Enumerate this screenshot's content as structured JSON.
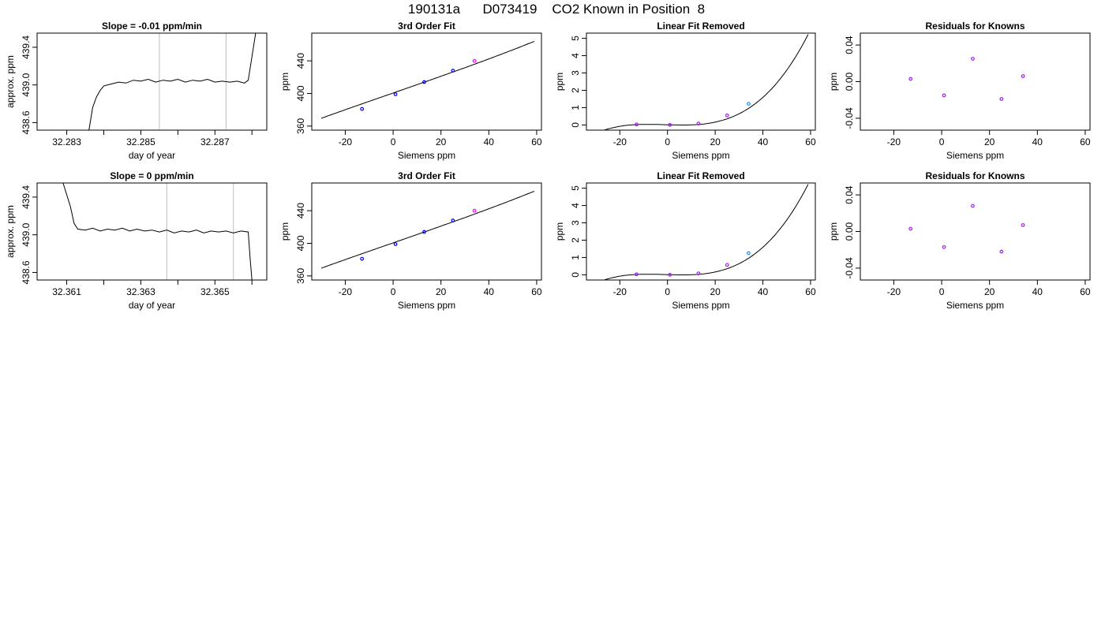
{
  "figure": {
    "title": "190131a      D073419    CO2 Known in Position  8"
  },
  "chart_data": [
    {
      "type": "line",
      "title": "Slope =  -0.01  ppm/min",
      "xlabel": "day of year",
      "ylabel": "approx. ppm",
      "xlim": [
        32.2822,
        32.2884
      ],
      "ylim": [
        438.52,
        439.55
      ],
      "xticks": [
        32.283,
        32.284,
        32.285,
        32.286,
        32.287,
        32.288
      ],
      "xtick_labels": [
        "32.283",
        "",
        "32.285",
        "",
        "32.287",
        ""
      ],
      "yticks": [
        438.6,
        439.0,
        439.4
      ],
      "ytick_labels": [
        "438.6",
        "439.0",
        "439.4"
      ],
      "vlines": [
        32.2855,
        32.2873
      ],
      "vline_color": "#bebebe",
      "series": [
        {
          "color": "#000000",
          "x": [
            32.2836,
            32.2837,
            32.2838,
            32.2839,
            32.284,
            32.2842,
            32.2844,
            32.2846,
            32.2848,
            32.285,
            32.2852,
            32.2854,
            32.2856,
            32.2858,
            32.286,
            32.2862,
            32.2864,
            32.2866,
            32.2868,
            32.287,
            32.2872,
            32.2874,
            32.2876,
            32.2878,
            32.2879,
            32.288,
            32.2881
          ],
          "y": [
            438.52,
            438.76,
            438.87,
            438.94,
            438.99,
            439.01,
            439.03,
            439.02,
            439.05,
            439.04,
            439.06,
            439.03,
            439.05,
            439.04,
            439.06,
            439.03,
            439.05,
            439.04,
            439.06,
            439.03,
            439.04,
            439.03,
            439.04,
            439.02,
            439.05,
            439.3,
            439.55
          ]
        }
      ],
      "grid": false
    },
    {
      "type": "scatter",
      "title": "3rd Order Fit",
      "xlabel": "Siemens ppm",
      "ylabel": "ppm",
      "xlim": [
        -34,
        62
      ],
      "ylim": [
        355,
        474
      ],
      "xticks": [
        -20,
        0,
        20,
        40,
        60
      ],
      "yticks": [
        360,
        400,
        440
      ],
      "curve": {
        "kind": "cubic",
        "a": 400.55,
        "b": 1.02,
        "c": 0,
        "d": 1.54e-05,
        "x0": -30,
        "x1": 59,
        "color": "#000000"
      },
      "points": [
        {
          "x": -13,
          "y": 381,
          "color": "#0000ff"
        },
        {
          "x": 1,
          "y": 399,
          "color": "#0000ff"
        },
        {
          "x": 13,
          "y": 414,
          "color": "#0000ff"
        },
        {
          "x": 25,
          "y": 428,
          "color": "#0000ff"
        },
        {
          "x": 34,
          "y": 440,
          "color": "#ff00ff"
        }
      ],
      "grid": false
    },
    {
      "type": "scatter",
      "title": "Linear Fit Removed",
      "xlabel": "Siemens ppm",
      "ylabel": "ppm",
      "xlim": [
        -34,
        62
      ],
      "ylim": [
        -0.3,
        5.3
      ],
      "xticks": [
        -20,
        0,
        20,
        40,
        60
      ],
      "yticks": [
        0,
        1,
        2,
        3,
        4,
        5
      ],
      "curve": {
        "kind": "cubic",
        "a": 0.01,
        "b": -0.004,
        "c": 8e-05,
        "d": 2.52e-05,
        "x0": -30,
        "x1": 59,
        "color": "#000000"
      },
      "points": [
        {
          "x": -13,
          "y": 0.03,
          "color": "#a020f0"
        },
        {
          "x": 1,
          "y": 0.0,
          "color": "#a020f0"
        },
        {
          "x": 13,
          "y": 0.08,
          "color": "#a020f0"
        },
        {
          "x": 25,
          "y": 0.55,
          "color": "#a020f0"
        },
        {
          "x": 34,
          "y": 1.22,
          "color": "#1e90ff"
        }
      ],
      "grid": false
    },
    {
      "type": "scatter",
      "title": "Residuals for Knowns",
      "xlabel": "Siemens ppm",
      "ylabel": "ppm",
      "xlim": [
        -34,
        62
      ],
      "ylim": [
        -0.053,
        0.053
      ],
      "xticks": [
        -20,
        0,
        20,
        40,
        60
      ],
      "yticks": [
        -0.04,
        0.0,
        0.04
      ],
      "ytick_labels": [
        "-0.04",
        "0.00",
        "0.04"
      ],
      "points": [
        {
          "x": -13,
          "y": 0.003,
          "color": "#a020f0"
        },
        {
          "x": 1,
          "y": -0.015,
          "color": "#a020f0"
        },
        {
          "x": 13,
          "y": 0.025,
          "color": "#a020f0"
        },
        {
          "x": 25,
          "y": -0.019,
          "color": "#a020f0"
        },
        {
          "x": 34,
          "y": 0.006,
          "color": "#a020f0"
        }
      ],
      "grid": false
    },
    {
      "type": "line",
      "title": "Slope =  0  ppm/min",
      "xlabel": "day of year",
      "ylabel": "approx. ppm",
      "xlim": [
        32.3602,
        32.3664
      ],
      "ylim": [
        438.52,
        439.55
      ],
      "xticks": [
        32.361,
        32.362,
        32.363,
        32.364,
        32.365,
        32.366
      ],
      "xtick_labels": [
        "32.361",
        "",
        "32.363",
        "",
        "32.365",
        ""
      ],
      "yticks": [
        438.6,
        439.0,
        439.4
      ],
      "ytick_labels": [
        "438.6",
        "439.0",
        "439.4"
      ],
      "vlines": [
        32.3637,
        32.3655
      ],
      "vline_color": "#bebebe",
      "series": [
        {
          "color": "#000000",
          "x": [
            32.3609,
            32.3611,
            32.3612,
            32.3613,
            32.3615,
            32.3617,
            32.3619,
            32.3621,
            32.3623,
            32.3625,
            32.3627,
            32.3629,
            32.3631,
            32.3633,
            32.3635,
            32.3637,
            32.3639,
            32.3641,
            32.3643,
            32.3645,
            32.3647,
            32.3649,
            32.3651,
            32.3653,
            32.3655,
            32.3657,
            32.3659,
            32.36595,
            32.366
          ],
          "y": [
            439.55,
            439.3,
            439.12,
            439.06,
            439.05,
            439.07,
            439.04,
            439.06,
            439.05,
            439.07,
            439.04,
            439.06,
            439.04,
            439.05,
            439.03,
            439.05,
            439.02,
            439.04,
            439.03,
            439.05,
            439.02,
            439.04,
            439.03,
            439.04,
            439.02,
            439.04,
            439.03,
            438.75,
            438.52
          ]
        }
      ],
      "grid": false
    },
    {
      "type": "scatter",
      "title": "3rd Order Fit",
      "xlabel": "Siemens ppm",
      "ylabel": "ppm",
      "xlim": [
        -34,
        62
      ],
      "ylim": [
        355,
        474
      ],
      "xticks": [
        -20,
        0,
        20,
        40,
        60
      ],
      "yticks": [
        360,
        400,
        440
      ],
      "curve": {
        "kind": "cubic",
        "a": 400.55,
        "b": 1.02,
        "c": 0,
        "d": 1.54e-05,
        "x0": -30,
        "x1": 59,
        "color": "#000000"
      },
      "points": [
        {
          "x": -13,
          "y": 381,
          "color": "#0000ff"
        },
        {
          "x": 1,
          "y": 399,
          "color": "#0000ff"
        },
        {
          "x": 13,
          "y": 414,
          "color": "#0000ff"
        },
        {
          "x": 25,
          "y": 428,
          "color": "#0000ff"
        },
        {
          "x": 34,
          "y": 440,
          "color": "#ff00ff"
        }
      ],
      "grid": false
    },
    {
      "type": "scatter",
      "title": "Linear Fit Removed",
      "xlabel": "Siemens ppm",
      "ylabel": "ppm",
      "xlim": [
        -34,
        62
      ],
      "ylim": [
        -0.3,
        5.3
      ],
      "xticks": [
        -20,
        0,
        20,
        40,
        60
      ],
      "yticks": [
        0,
        1,
        2,
        3,
        4,
        5
      ],
      "curve": {
        "kind": "cubic",
        "a": 0.01,
        "b": -0.004,
        "c": 8e-05,
        "d": 2.52e-05,
        "x0": -30,
        "x1": 59,
        "color": "#000000"
      },
      "points": [
        {
          "x": -13,
          "y": 0.03,
          "color": "#a020f0"
        },
        {
          "x": 1,
          "y": 0.0,
          "color": "#a020f0"
        },
        {
          "x": 13,
          "y": 0.08,
          "color": "#a020f0"
        },
        {
          "x": 25,
          "y": 0.57,
          "color": "#a020f0"
        },
        {
          "x": 34,
          "y": 1.25,
          "color": "#1e90ff"
        }
      ],
      "grid": false
    },
    {
      "type": "scatter",
      "title": "Residuals for Knowns",
      "xlabel": "Siemens ppm",
      "ylabel": "ppm",
      "xlim": [
        -34,
        62
      ],
      "ylim": [
        -0.053,
        0.053
      ],
      "xticks": [
        -20,
        0,
        20,
        40,
        60
      ],
      "yticks": [
        -0.04,
        0.0,
        0.04
      ],
      "ytick_labels": [
        "-0.04",
        "0.00",
        "0.04"
      ],
      "points": [
        {
          "x": -13,
          "y": 0.003,
          "color": "#a020f0"
        },
        {
          "x": 1,
          "y": -0.017,
          "color": "#a020f0"
        },
        {
          "x": 13,
          "y": 0.028,
          "color": "#a020f0"
        },
        {
          "x": 25,
          "y": -0.022,
          "color": "#a020f0"
        },
        {
          "x": 34,
          "y": 0.007,
          "color": "#a020f0"
        }
      ],
      "grid": false
    }
  ]
}
